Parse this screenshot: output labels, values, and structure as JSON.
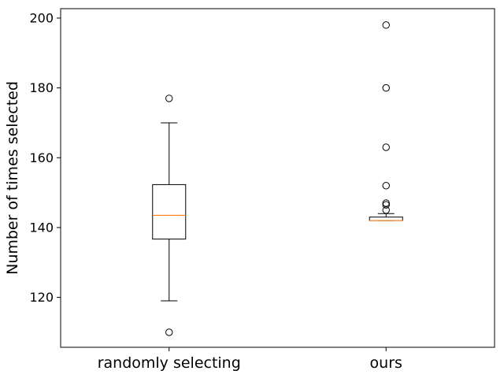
{
  "chart_data": {
    "type": "box",
    "title": "",
    "xlabel": "",
    "ylabel": "Number of times selected",
    "ylim": [
      105.7,
      202.7
    ],
    "yticks": [
      120,
      140,
      160,
      180,
      200
    ],
    "grid": false,
    "categories": [
      "randomly selecting",
      "ours"
    ],
    "boxes": [
      {
        "name": "randomly selecting",
        "whisker_low": 119,
        "q1": 136.7,
        "median": 143.5,
        "q3": 152.3,
        "whisker_high": 170,
        "outliers": [
          177,
          110
        ]
      },
      {
        "name": "ours",
        "whisker_low": 142,
        "q1": 142,
        "median": 142,
        "q3": 143,
        "whisker_high": 144,
        "outliers": [
          198,
          180,
          163,
          152,
          147,
          146.5,
          145
        ]
      }
    ],
    "colors": {
      "box": "#000000",
      "median": "#ff7f0e",
      "outlier": "#000000"
    }
  }
}
